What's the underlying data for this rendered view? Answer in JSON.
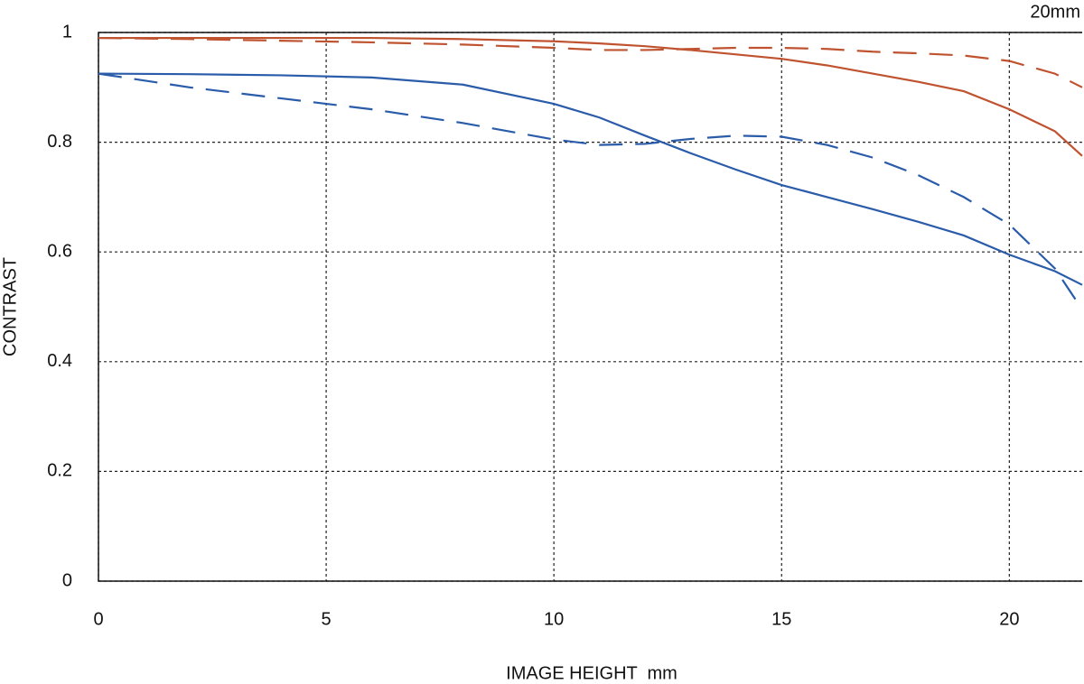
{
  "chart_data": {
    "type": "line",
    "title": "20mm",
    "x_label": "IMAGE HEIGHT  mm",
    "y_label": "CONTRAST",
    "x": [
      0,
      2,
      4,
      6,
      8,
      10,
      11,
      12,
      13,
      14,
      15,
      16,
      17,
      18,
      19,
      20,
      21,
      21.6
    ],
    "series": [
      {
        "color": "#c0532f",
        "dashed": false,
        "values": [
          0.99,
          0.99,
          0.99,
          0.99,
          0.988,
          0.984,
          0.98,
          0.975,
          0.968,
          0.96,
          0.952,
          0.94,
          0.925,
          0.91,
          0.893,
          0.86,
          0.82,
          0.775
        ]
      },
      {
        "color": "#c0532f",
        "dashed": true,
        "values": [
          0.99,
          0.988,
          0.985,
          0.982,
          0.978,
          0.972,
          0.968,
          0.968,
          0.97,
          0.972,
          0.972,
          0.97,
          0.965,
          0.962,
          0.958,
          0.948,
          0.925,
          0.9
        ]
      },
      {
        "color": "#2a5caa",
        "dashed": false,
        "values": [
          0.925,
          0.924,
          0.922,
          0.918,
          0.905,
          0.87,
          0.845,
          0.812,
          0.78,
          0.75,
          0.722,
          0.7,
          0.678,
          0.655,
          0.63,
          0.595,
          0.565,
          0.54
        ]
      },
      {
        "color": "#2a5caa",
        "dashed": true,
        "values": [
          0.925,
          0.9,
          0.88,
          0.86,
          0.835,
          0.805,
          0.795,
          0.797,
          0.806,
          0.812,
          0.81,
          0.795,
          0.772,
          0.74,
          0.7,
          0.65,
          0.57,
          0.495
        ]
      }
    ],
    "xlim": [
      0,
      21.6
    ],
    "xticks": [
      0,
      5,
      10,
      15,
      20
    ],
    "ylim": [
      0,
      1
    ],
    "yticks": [
      0,
      0.2,
      0.4,
      0.6,
      0.8,
      1
    ],
    "grid": true
  }
}
